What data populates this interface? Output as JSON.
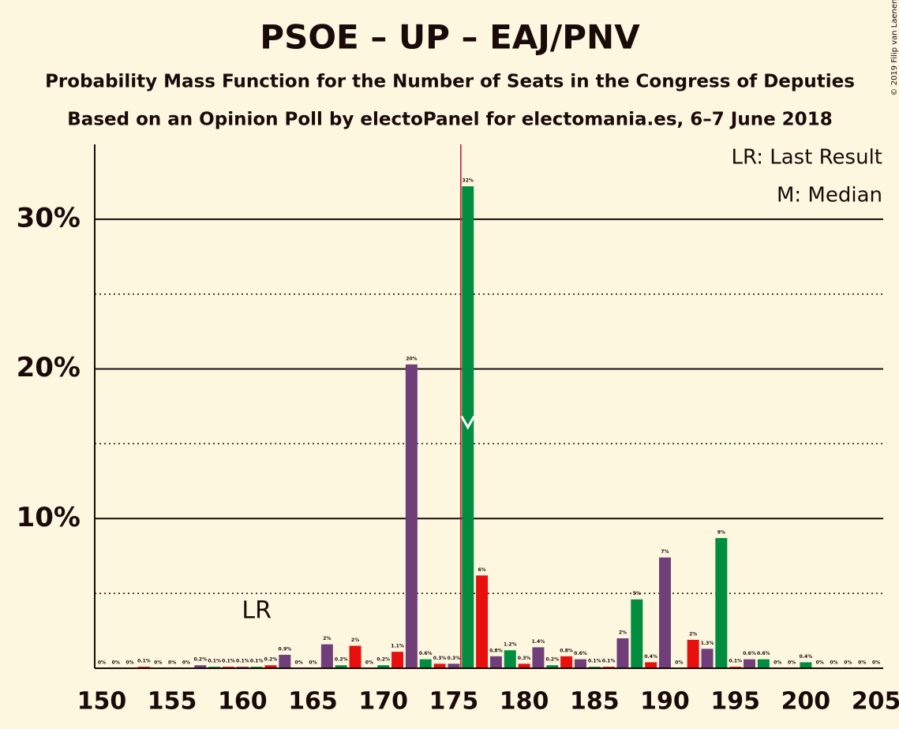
{
  "chart_data": {
    "type": "bar",
    "title": "PSOE – UP – EAJ/PNV",
    "subtitle": "Probability Mass Function for the Number of Seats in the Congress of Deputies",
    "subtitle2": "Based on an Opinion Poll by electoPanel for electomania.es, 6–7 June 2018",
    "copyright": "© 2019 Filip van Laenen",
    "legend": [
      "LR: Last Result",
      "M: Median"
    ],
    "x": [
      150,
      151,
      152,
      153,
      154,
      155,
      156,
      157,
      158,
      159,
      160,
      161,
      162,
      163,
      164,
      165,
      166,
      167,
      168,
      169,
      170,
      171,
      172,
      173,
      174,
      175,
      176,
      177,
      178,
      179,
      180,
      181,
      182,
      183,
      184,
      185,
      186,
      187,
      188,
      189,
      190,
      191,
      192,
      193,
      194,
      195,
      196,
      197,
      198,
      199,
      200,
      201,
      202,
      203,
      204,
      205
    ],
    "values": [
      0,
      0,
      0,
      0.1,
      0,
      0,
      0,
      0.2,
      0.1,
      0.1,
      0.1,
      0.1,
      0.2,
      0.9,
      0,
      0,
      1.6,
      0.2,
      1.5,
      0,
      0.2,
      1.1,
      20.3,
      0.6,
      0.3,
      0.3,
      32.2,
      6.2,
      0.8,
      1.2,
      0.3,
      1.4,
      0.2,
      0.8,
      0.6,
      0.1,
      0.1,
      2.0,
      4.6,
      0.4,
      7.4,
      0,
      1.9,
      1.3,
      8.7,
      0.1,
      0.6,
      0.6,
      0,
      0,
      0.4,
      0,
      0,
      0,
      0,
      0
    ],
    "value_labels": [
      "0%",
      "0%",
      "0%",
      "0.1%",
      "0%",
      "0%",
      "0%",
      "0.2%",
      "0.1%",
      "0.1%",
      "0.1%",
      "0.1%",
      "0.2%",
      "0.9%",
      "0%",
      "0%",
      "2%",
      "0.2%",
      "2%",
      "0%",
      "0.2%",
      "1.1%",
      "20%",
      "0.6%",
      "0.3%",
      "0.3%",
      "32%",
      "6%",
      "0.8%",
      "1.2%",
      "0.3%",
      "1.4%",
      "0.2%",
      "0.8%",
      "0.6%",
      "0.1%",
      "0.1%",
      "2%",
      "5%",
      "0.4%",
      "7%",
      "0%",
      "2%",
      "1.3%",
      "9%",
      "0.1%",
      "0.6%",
      "0.6%",
      "0%",
      "0%",
      "0.4%",
      "0%",
      "0%",
      "0%",
      "0%",
      "0%"
    ],
    "colors": [
      "#e8100f",
      "#703f7a",
      "#008d3f",
      "#e8100f",
      "#703f7a",
      "#008d3f",
      "#e8100f",
      "#703f7a",
      "#008d3f",
      "#e8100f",
      "#703f7a",
      "#008d3f",
      "#e8100f",
      "#703f7a",
      "#008d3f",
      "#e8100f",
      "#703f7a",
      "#008d3f",
      "#e8100f",
      "#703f7a",
      "#008d3f",
      "#e8100f",
      "#703f7a",
      "#008d3f",
      "#e8100f",
      "#703f7a",
      "#008d3f",
      "#e8100f",
      "#703f7a",
      "#008d3f",
      "#e8100f",
      "#703f7a",
      "#008d3f",
      "#e8100f",
      "#703f7a",
      "#008d3f",
      "#e8100f",
      "#703f7a",
      "#008d3f",
      "#e8100f",
      "#703f7a",
      "#008d3f",
      "#e8100f",
      "#703f7a",
      "#008d3f",
      "#e8100f",
      "#703f7a",
      "#008d3f",
      "#e8100f",
      "#703f7a",
      "#008d3f",
      "#e8100f",
      "#703f7a",
      "#008d3f",
      "#e8100f",
      "#703f7a"
    ],
    "xlim": [
      149.5,
      205.5
    ],
    "xticks": [
      150,
      155,
      160,
      165,
      170,
      175,
      180,
      185,
      190,
      195,
      200,
      205
    ],
    "ylim": [
      0,
      35
    ],
    "yticks": [
      {
        "value": 10,
        "label": "10%"
      },
      {
        "value": 20,
        "label": "20%"
      },
      {
        "value": 30,
        "label": "30%"
      }
    ],
    "minor_yticks": [
      5,
      15,
      25
    ],
    "majority": 175.5,
    "median": 176,
    "last_result": 161,
    "last_result_label": "LR"
  }
}
